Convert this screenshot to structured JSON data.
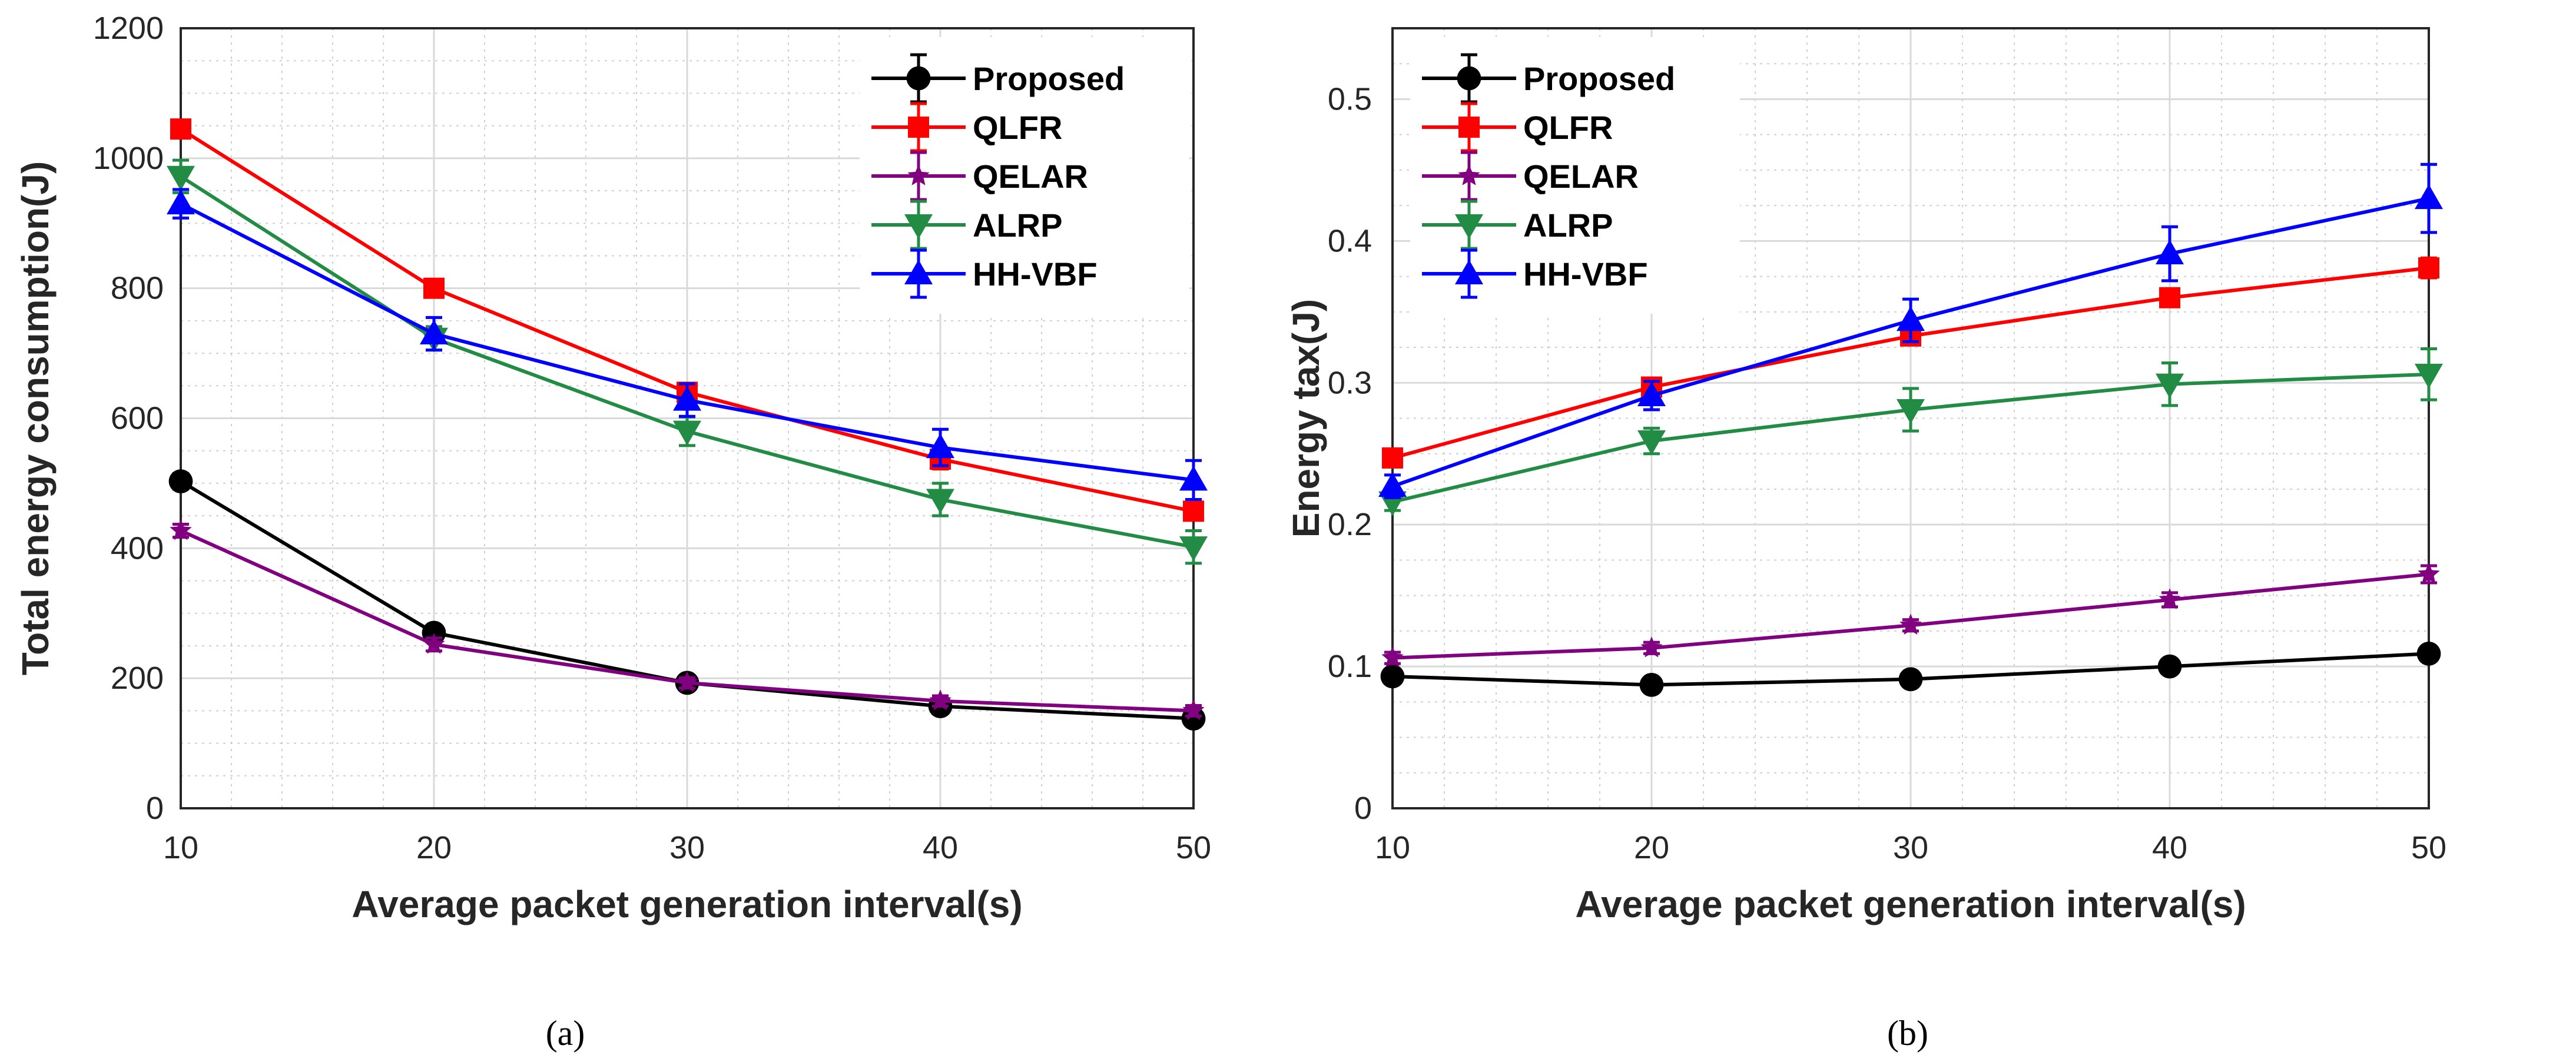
{
  "chart_data": [
    {
      "type": "line",
      "caption": "(a)",
      "xlabel": "Average packet generation interval(s)",
      "ylabel": "Total energy consumption(J)",
      "x": [
        10,
        20,
        30,
        40,
        50
      ],
      "xlim": [
        10,
        50
      ],
      "ylim": [
        0,
        1200
      ],
      "xticks": [
        10,
        20,
        30,
        40,
        50
      ],
      "yticks": [
        0,
        200,
        400,
        600,
        800,
        1000,
        1200
      ],
      "grid": true,
      "legend_position": "top-right",
      "series": [
        {
          "name": "Proposed",
          "color": "#000000",
          "marker": "circle",
          "values": [
            503,
            270,
            193,
            157,
            138
          ],
          "errors": [
            12,
            10,
            8,
            8,
            8
          ]
        },
        {
          "name": "QLFR",
          "color": "#ff0000",
          "marker": "square",
          "values": [
            1045,
            800,
            640,
            537,
            457
          ],
          "errors": [
            12,
            10,
            12,
            15,
            10
          ]
        },
        {
          "name": "QELAR",
          "color": "#800080",
          "marker": "star",
          "values": [
            427,
            252,
            193,
            165,
            150
          ],
          "errors": [
            10,
            10,
            8,
            8,
            8
          ]
        },
        {
          "name": "ALRP",
          "color": "#228b44",
          "marker": "triangle-down",
          "values": [
            972,
            723,
            580,
            475,
            402
          ],
          "errors": [
            25,
            18,
            22,
            25,
            25
          ]
        },
        {
          "name": "HH-VBF",
          "color": "#0000ff",
          "marker": "triangle-up",
          "values": [
            930,
            730,
            628,
            555,
            505
          ],
          "errors": [
            22,
            25,
            25,
            28,
            30
          ]
        }
      ]
    },
    {
      "type": "line",
      "caption": "(b)",
      "xlabel": "Average packet generation interval(s)",
      "ylabel": "Energy tax(J)",
      "x": [
        10,
        20,
        30,
        40,
        50
      ],
      "xlim": [
        10,
        50
      ],
      "ylim": [
        0,
        0.55
      ],
      "xticks": [
        10,
        20,
        30,
        40,
        50
      ],
      "yticks": [
        0,
        0.1,
        0.2,
        0.3,
        0.4,
        0.5
      ],
      "grid": true,
      "legend_position": "top-left",
      "series": [
        {
          "name": "Proposed",
          "color": "#000000",
          "marker": "circle",
          "values": [
            0.093,
            0.087,
            0.091,
            0.1,
            0.109
          ],
          "errors": [
            0.004,
            0.003,
            0.003,
            0.004,
            0.005
          ]
        },
        {
          "name": "QLFR",
          "color": "#ff0000",
          "marker": "square",
          "values": [
            0.247,
            0.297,
            0.333,
            0.36,
            0.381
          ],
          "errors": [
            0.004,
            0.005,
            0.006,
            0.005,
            0.007
          ]
        },
        {
          "name": "QELAR",
          "color": "#800080",
          "marker": "star",
          "values": [
            0.106,
            0.113,
            0.129,
            0.147,
            0.165
          ],
          "errors": [
            0.004,
            0.004,
            0.004,
            0.005,
            0.006
          ]
        },
        {
          "name": "ALRP",
          "color": "#228b44",
          "marker": "triangle-down",
          "values": [
            0.216,
            0.259,
            0.281,
            0.299,
            0.306
          ],
          "errors": [
            0.006,
            0.009,
            0.015,
            0.015,
            0.018
          ]
        },
        {
          "name": "HH-VBF",
          "color": "#0000ff",
          "marker": "triangle-up",
          "values": [
            0.227,
            0.291,
            0.344,
            0.391,
            0.43
          ],
          "errors": [
            0.008,
            0.01,
            0.015,
            0.019,
            0.024
          ]
        }
      ]
    }
  ]
}
